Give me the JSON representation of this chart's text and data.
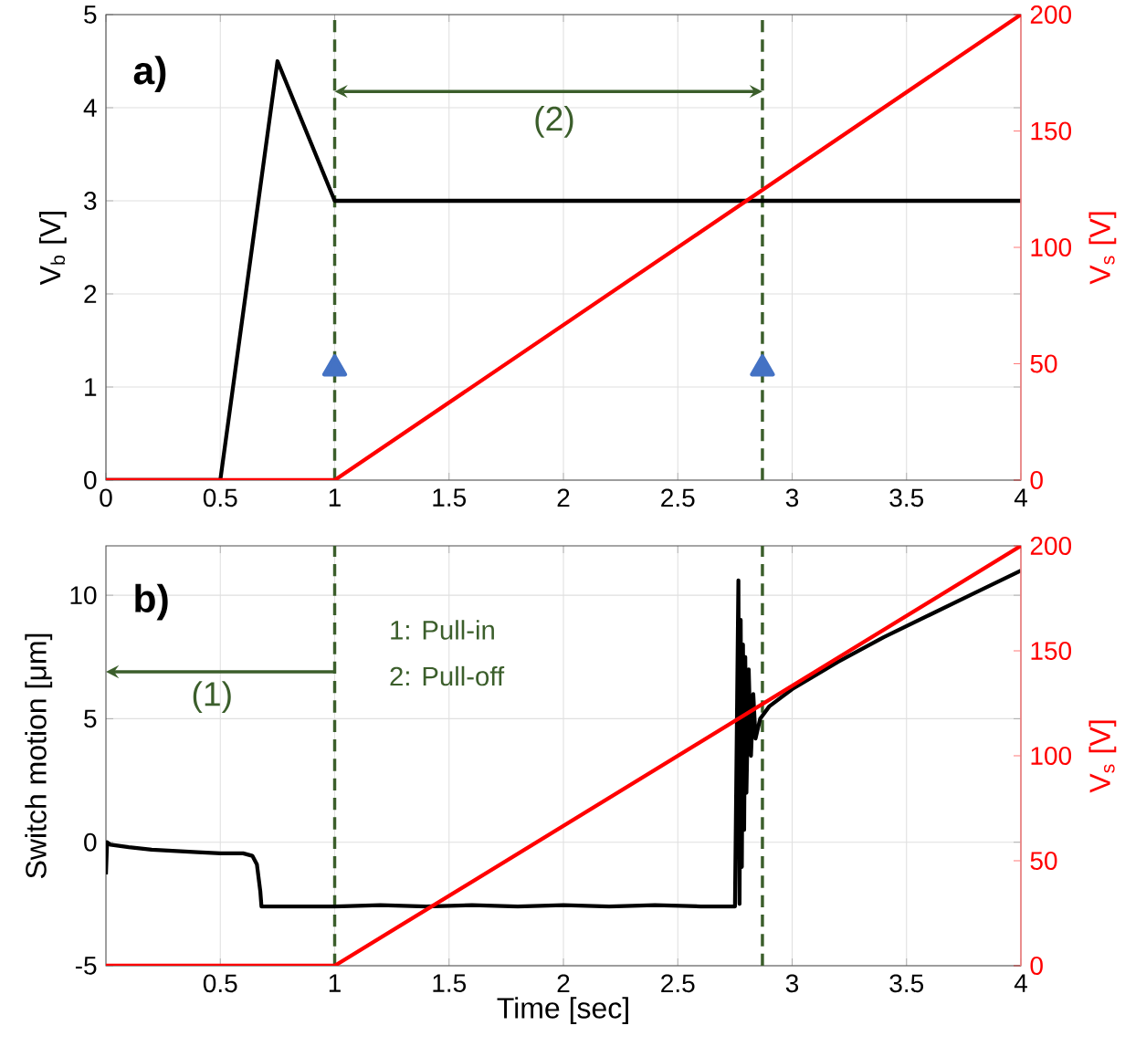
{
  "chart_data": [
    {
      "type": "line",
      "xlim": [
        0,
        4
      ],
      "xticks": [
        0,
        0.5,
        1,
        1.5,
        2,
        2.5,
        3,
        3.5,
        4
      ],
      "ylim": [
        0,
        5
      ],
      "yticks": [
        0,
        1,
        2,
        3,
        4,
        5
      ],
      "y2lim": [
        0,
        200
      ],
      "y2ticks": [
        0,
        50,
        100,
        150,
        200
      ],
      "ylabel": "V$_{b}$ [V]",
      "y2label": "V$_{s}$ [V]",
      "grid": true,
      "series": [
        {
          "color": "#000000",
          "x": [
            0,
            0.5,
            0.75,
            1,
            4
          ],
          "values": [
            0,
            0,
            4.5,
            3,
            3
          ]
        },
        {
          "type": "scatter",
          "marker": "triangle",
          "color": "#4472c4",
          "x": [
            1,
            2.87
          ],
          "values": [
            1.2,
            1.2
          ]
        },
        {
          "color": "#ff0000",
          "axis": "y2",
          "x": [
            0,
            1,
            4
          ],
          "values": [
            0,
            0,
            200
          ]
        }
      ],
      "ref_lines": [
        {
          "axis": "x",
          "value": 1,
          "color": "#3b5e2b",
          "line_style": "dashed"
        },
        {
          "axis": "x",
          "value": 2.87,
          "color": "#3b5e2b",
          "line_style": "dashed"
        }
      ],
      "annotations": [
        "a)",
        "(2)"
      ]
    },
    {
      "type": "line",
      "xlim": [
        0,
        4
      ],
      "xticks": [
        0.5,
        1,
        1.5,
        2,
        2.5,
        3,
        3.5,
        4
      ],
      "ylim": [
        -5,
        12
      ],
      "yticks": [
        -5,
        0,
        5,
        10
      ],
      "y2lim": [
        0,
        200
      ],
      "y2ticks": [
        0,
        50,
        100,
        150,
        200
      ],
      "xlabel": "Time [sec]",
      "ylabel": "Switch motion [μm]",
      "y2label": "V$_{s}$ [V]",
      "grid": true,
      "series": [
        {
          "color": "#000000",
          "x": [
            0,
            0.005,
            0.02,
            0.1,
            0.2,
            0.3,
            0.4,
            0.5,
            0.6,
            0.64,
            0.66,
            0.675,
            0.68,
            0.7,
            0.8,
            0.9,
            1.0,
            1.2,
            1.4,
            1.6,
            1.8,
            2.0,
            2.2,
            2.4,
            2.6,
            2.75,
            2.765,
            2.77,
            2.775,
            2.78,
            2.785,
            2.79,
            2.795,
            2.8,
            2.81,
            2.82,
            2.83,
            2.84,
            2.86,
            2.9,
            3.0,
            3.2,
            3.4,
            3.6,
            3.8,
            4.0
          ],
          "values": [
            -1.3,
            0,
            -0.1,
            -0.2,
            -0.3,
            -0.35,
            -0.4,
            -0.45,
            -0.45,
            -0.55,
            -0.9,
            -2.0,
            -2.6,
            -2.6,
            -2.6,
            -2.6,
            -2.6,
            -2.55,
            -2.6,
            -2.55,
            -2.6,
            -2.55,
            -2.6,
            -2.55,
            -2.6,
            -2.6,
            10.6,
            -2.5,
            9.0,
            -1.0,
            8.0,
            0.5,
            7.5,
            2.0,
            7.0,
            3.5,
            6.0,
            4.2,
            5.0,
            5.5,
            6.2,
            7.3,
            8.3,
            9.2,
            10.1,
            11.0
          ]
        },
        {
          "color": "#ff0000",
          "axis": "y2",
          "x": [
            0,
            1,
            4
          ],
          "values": [
            0,
            0,
            200
          ]
        }
      ],
      "ref_lines": [
        {
          "axis": "x",
          "value": 1,
          "color": "#3b5e2b",
          "line_style": "dashed"
        },
        {
          "axis": "x",
          "value": 2.87,
          "color": "#3b5e2b",
          "line_style": "dashed"
        }
      ],
      "annotations": [
        "b)",
        "(1)",
        "1: Pull-in",
        "2: Pull-off"
      ]
    }
  ]
}
